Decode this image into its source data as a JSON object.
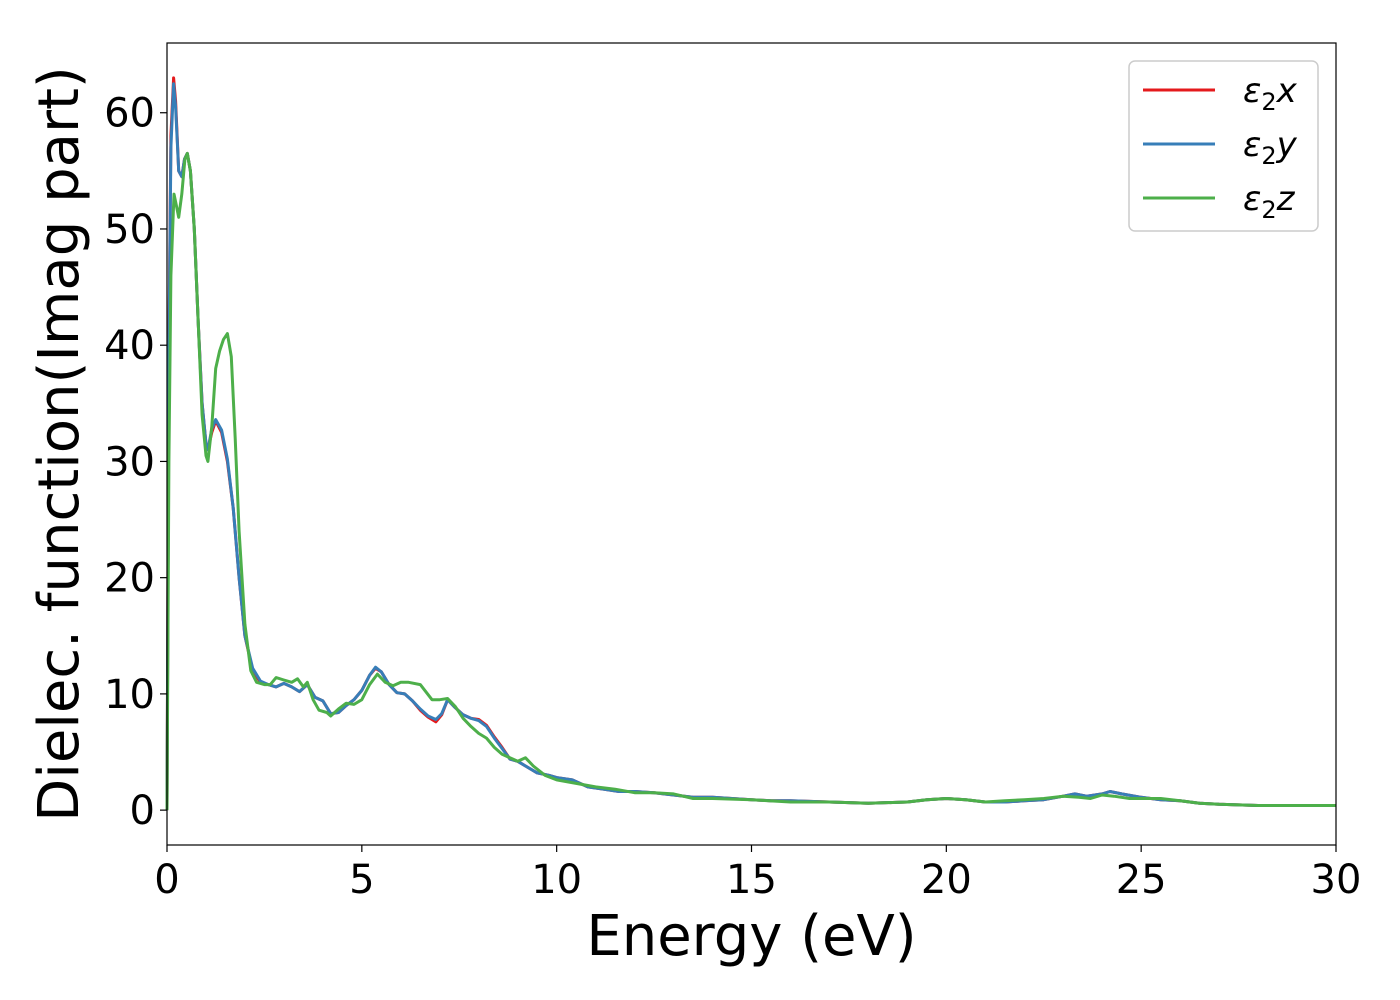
{
  "chart_data": {
    "type": "line",
    "title": "",
    "xlabel": "Energy (eV)",
    "ylabel": "Dielec. function(Imag part)",
    "xlim": [
      0,
      30
    ],
    "ylim": [
      -3,
      66
    ],
    "x_ticks": [
      0,
      5,
      10,
      15,
      20,
      25,
      30
    ],
    "y_ticks": [
      0,
      10,
      20,
      30,
      40,
      50,
      60
    ],
    "grid": false,
    "legend_position": "top-right",
    "series": [
      {
        "name": "x",
        "legend_base": "ε",
        "legend_sub": "2",
        "legend_suffix": "x",
        "color": "#e41a1c",
        "points": [
          [
            0,
            0
          ],
          [
            0.05,
            40
          ],
          [
            0.1,
            58
          ],
          [
            0.17,
            63
          ],
          [
            0.22,
            61
          ],
          [
            0.3,
            55
          ],
          [
            0.38,
            54.5
          ],
          [
            0.45,
            56
          ],
          [
            0.52,
            56.5
          ],
          [
            0.6,
            55
          ],
          [
            0.7,
            50
          ],
          [
            0.8,
            42
          ],
          [
            0.9,
            35
          ],
          [
            1.0,
            31.5
          ],
          [
            1.05,
            31
          ],
          [
            1.15,
            32.5
          ],
          [
            1.25,
            33.5
          ],
          [
            1.4,
            32.5
          ],
          [
            1.55,
            30
          ],
          [
            1.7,
            26
          ],
          [
            1.85,
            20
          ],
          [
            2.0,
            15
          ],
          [
            2.2,
            12
          ],
          [
            2.4,
            11
          ],
          [
            2.6,
            10.8
          ],
          [
            2.8,
            10.6
          ],
          [
            3.0,
            10.9
          ],
          [
            3.2,
            10.6
          ],
          [
            3.4,
            10.2
          ],
          [
            3.6,
            10.8
          ],
          [
            3.8,
            9.7
          ],
          [
            4.0,
            9.4
          ],
          [
            4.2,
            8.3
          ],
          [
            4.4,
            8.4
          ],
          [
            4.6,
            9.0
          ],
          [
            4.8,
            9.5
          ],
          [
            5.0,
            10.3
          ],
          [
            5.2,
            11.6
          ],
          [
            5.35,
            12.2
          ],
          [
            5.5,
            11.9
          ],
          [
            5.7,
            10.8
          ],
          [
            5.9,
            10.1
          ],
          [
            6.1,
            10.0
          ],
          [
            6.3,
            9.4
          ],
          [
            6.5,
            8.6
          ],
          [
            6.7,
            8.0
          ],
          [
            6.9,
            7.6
          ],
          [
            7.05,
            8.2
          ],
          [
            7.2,
            9.5
          ],
          [
            7.4,
            8.8
          ],
          [
            7.6,
            8.2
          ],
          [
            7.8,
            7.9
          ],
          [
            8.0,
            7.8
          ],
          [
            8.2,
            7.3
          ],
          [
            8.4,
            6.3
          ],
          [
            8.6,
            5.4
          ],
          [
            8.8,
            4.4
          ],
          [
            9.0,
            4.2
          ],
          [
            9.2,
            3.8
          ],
          [
            9.5,
            3.2
          ],
          [
            9.8,
            3.0
          ],
          [
            10.0,
            2.8
          ],
          [
            10.4,
            2.6
          ],
          [
            10.8,
            2.0
          ],
          [
            11.2,
            1.8
          ],
          [
            11.6,
            1.6
          ],
          [
            12.0,
            1.6
          ],
          [
            12.5,
            1.5
          ],
          [
            13.0,
            1.3
          ],
          [
            13.5,
            1.1
          ],
          [
            14.0,
            1.1
          ],
          [
            14.5,
            1.0
          ],
          [
            15.0,
            0.9
          ],
          [
            15.5,
            0.8
          ],
          [
            16.0,
            0.8
          ],
          [
            17.0,
            0.7
          ],
          [
            18.0,
            0.6
          ],
          [
            19.0,
            0.7
          ],
          [
            19.5,
            0.9
          ],
          [
            20.0,
            1.0
          ],
          [
            20.5,
            0.9
          ],
          [
            21.0,
            0.7
          ],
          [
            21.5,
            0.7
          ],
          [
            22.0,
            0.8
          ],
          [
            22.5,
            0.9
          ],
          [
            23.0,
            1.2
          ],
          [
            23.3,
            1.4
          ],
          [
            23.6,
            1.2
          ],
          [
            24.0,
            1.4
          ],
          [
            24.2,
            1.6
          ],
          [
            24.5,
            1.4
          ],
          [
            25.0,
            1.1
          ],
          [
            25.5,
            0.9
          ],
          [
            26.0,
            0.8
          ],
          [
            26.5,
            0.6
          ],
          [
            27.0,
            0.5
          ],
          [
            28.0,
            0.4
          ],
          [
            29.0,
            0.4
          ],
          [
            30.0,
            0.4
          ]
        ]
      },
      {
        "name": "y",
        "legend_base": "ε",
        "legend_sub": "2",
        "legend_suffix": "y",
        "color": "#377eb8",
        "points": [
          [
            0,
            0
          ],
          [
            0.05,
            39
          ],
          [
            0.1,
            57
          ],
          [
            0.17,
            62.5
          ],
          [
            0.22,
            60.5
          ],
          [
            0.3,
            55
          ],
          [
            0.38,
            54.5
          ],
          [
            0.45,
            56
          ],
          [
            0.52,
            56.5
          ],
          [
            0.6,
            55
          ],
          [
            0.7,
            50
          ],
          [
            0.8,
            42
          ],
          [
            0.9,
            35
          ],
          [
            1.0,
            31.5
          ],
          [
            1.05,
            31
          ],
          [
            1.15,
            32.8
          ],
          [
            1.25,
            33.6
          ],
          [
            1.4,
            32.7
          ],
          [
            1.55,
            30.2
          ],
          [
            1.7,
            26
          ],
          [
            1.85,
            20
          ],
          [
            2.0,
            15
          ],
          [
            2.2,
            12.2
          ],
          [
            2.4,
            11.1
          ],
          [
            2.6,
            10.8
          ],
          [
            2.8,
            10.6
          ],
          [
            3.0,
            10.9
          ],
          [
            3.2,
            10.6
          ],
          [
            3.4,
            10.2
          ],
          [
            3.6,
            10.8
          ],
          [
            3.8,
            9.7
          ],
          [
            4.0,
            9.4
          ],
          [
            4.2,
            8.3
          ],
          [
            4.4,
            8.4
          ],
          [
            4.6,
            9.0
          ],
          [
            4.8,
            9.5
          ],
          [
            5.0,
            10.3
          ],
          [
            5.2,
            11.6
          ],
          [
            5.35,
            12.3
          ],
          [
            5.5,
            11.9
          ],
          [
            5.7,
            10.8
          ],
          [
            5.9,
            10.1
          ],
          [
            6.1,
            10.0
          ],
          [
            6.3,
            9.4
          ],
          [
            6.5,
            8.7
          ],
          [
            6.7,
            8.1
          ],
          [
            6.9,
            7.8
          ],
          [
            7.05,
            8.3
          ],
          [
            7.2,
            9.5
          ],
          [
            7.4,
            8.8
          ],
          [
            7.6,
            8.2
          ],
          [
            7.8,
            7.9
          ],
          [
            8.0,
            7.7
          ],
          [
            8.2,
            7.2
          ],
          [
            8.4,
            6.2
          ],
          [
            8.6,
            5.3
          ],
          [
            8.8,
            4.4
          ],
          [
            9.0,
            4.2
          ],
          [
            9.2,
            3.8
          ],
          [
            9.5,
            3.2
          ],
          [
            9.8,
            3.0
          ],
          [
            10.0,
            2.8
          ],
          [
            10.4,
            2.6
          ],
          [
            10.8,
            2.0
          ],
          [
            11.2,
            1.8
          ],
          [
            11.6,
            1.6
          ],
          [
            12.0,
            1.6
          ],
          [
            12.5,
            1.5
          ],
          [
            13.0,
            1.3
          ],
          [
            13.5,
            1.1
          ],
          [
            14.0,
            1.1
          ],
          [
            14.5,
            1.0
          ],
          [
            15.0,
            0.9
          ],
          [
            15.5,
            0.8
          ],
          [
            16.0,
            0.8
          ],
          [
            17.0,
            0.7
          ],
          [
            18.0,
            0.6
          ],
          [
            19.0,
            0.7
          ],
          [
            19.5,
            0.9
          ],
          [
            20.0,
            1.0
          ],
          [
            20.5,
            0.9
          ],
          [
            21.0,
            0.7
          ],
          [
            21.5,
            0.7
          ],
          [
            22.0,
            0.8
          ],
          [
            22.5,
            0.9
          ],
          [
            23.0,
            1.2
          ],
          [
            23.3,
            1.4
          ],
          [
            23.6,
            1.2
          ],
          [
            24.0,
            1.4
          ],
          [
            24.2,
            1.6
          ],
          [
            24.5,
            1.4
          ],
          [
            25.0,
            1.1
          ],
          [
            25.5,
            0.9
          ],
          [
            26.0,
            0.8
          ],
          [
            26.5,
            0.6
          ],
          [
            27.0,
            0.5
          ],
          [
            28.0,
            0.4
          ],
          [
            29.0,
            0.4
          ],
          [
            30.0,
            0.4
          ]
        ]
      },
      {
        "name": "z",
        "legend_base": "ε",
        "legend_sub": "2",
        "legend_suffix": "z",
        "color": "#4daf4a",
        "points": [
          [
            0,
            0
          ],
          [
            0.05,
            30
          ],
          [
            0.1,
            46
          ],
          [
            0.18,
            53
          ],
          [
            0.24,
            52
          ],
          [
            0.3,
            51
          ],
          [
            0.38,
            53
          ],
          [
            0.46,
            56
          ],
          [
            0.52,
            56.5
          ],
          [
            0.6,
            55
          ],
          [
            0.7,
            50
          ],
          [
            0.8,
            42
          ],
          [
            0.9,
            34
          ],
          [
            1.0,
            30.5
          ],
          [
            1.05,
            30
          ],
          [
            1.15,
            33
          ],
          [
            1.25,
            38
          ],
          [
            1.35,
            39.5
          ],
          [
            1.45,
            40.5
          ],
          [
            1.55,
            41
          ],
          [
            1.65,
            39
          ],
          [
            1.75,
            32
          ],
          [
            1.85,
            24
          ],
          [
            2.0,
            16
          ],
          [
            2.15,
            12
          ],
          [
            2.3,
            11
          ],
          [
            2.5,
            10.8
          ],
          [
            2.65,
            10.8
          ],
          [
            2.8,
            11.4
          ],
          [
            3.0,
            11.2
          ],
          [
            3.2,
            11.0
          ],
          [
            3.35,
            11.3
          ],
          [
            3.5,
            10.6
          ],
          [
            3.6,
            11.0
          ],
          [
            3.75,
            9.5
          ],
          [
            3.9,
            8.6
          ],
          [
            4.1,
            8.4
          ],
          [
            4.2,
            8.1
          ],
          [
            4.4,
            8.7
          ],
          [
            4.6,
            9.2
          ],
          [
            4.8,
            9.1
          ],
          [
            5.0,
            9.5
          ],
          [
            5.2,
            10.8
          ],
          [
            5.4,
            11.7
          ],
          [
            5.6,
            11.0
          ],
          [
            5.8,
            10.7
          ],
          [
            6.0,
            11.0
          ],
          [
            6.2,
            11.0
          ],
          [
            6.5,
            10.8
          ],
          [
            6.8,
            9.5
          ],
          [
            7.0,
            9.5
          ],
          [
            7.2,
            9.6
          ],
          [
            7.4,
            8.9
          ],
          [
            7.6,
            7.9
          ],
          [
            7.8,
            7.2
          ],
          [
            8.0,
            6.6
          ],
          [
            8.2,
            6.2
          ],
          [
            8.4,
            5.4
          ],
          [
            8.6,
            4.8
          ],
          [
            8.8,
            4.5
          ],
          [
            9.0,
            4.2
          ],
          [
            9.2,
            4.5
          ],
          [
            9.4,
            3.8
          ],
          [
            9.7,
            3.0
          ],
          [
            10.0,
            2.6
          ],
          [
            10.5,
            2.3
          ],
          [
            11.0,
            2.0
          ],
          [
            11.5,
            1.8
          ],
          [
            12.0,
            1.5
          ],
          [
            12.5,
            1.5
          ],
          [
            13.0,
            1.4
          ],
          [
            13.5,
            1.0
          ],
          [
            14.0,
            1.0
          ],
          [
            15.0,
            0.9
          ],
          [
            16.0,
            0.7
          ],
          [
            17.0,
            0.7
          ],
          [
            18.0,
            0.6
          ],
          [
            19.0,
            0.7
          ],
          [
            19.5,
            0.9
          ],
          [
            20.0,
            1.0
          ],
          [
            20.5,
            0.9
          ],
          [
            21.0,
            0.7
          ],
          [
            21.5,
            0.8
          ],
          [
            22.0,
            0.9
          ],
          [
            22.5,
            1.0
          ],
          [
            23.0,
            1.2
          ],
          [
            23.4,
            1.1
          ],
          [
            23.7,
            1.0
          ],
          [
            24.0,
            1.3
          ],
          [
            24.3,
            1.2
          ],
          [
            24.7,
            1.0
          ],
          [
            25.0,
            1.0
          ],
          [
            25.5,
            1.0
          ],
          [
            26.0,
            0.8
          ],
          [
            26.5,
            0.6
          ],
          [
            27.0,
            0.5
          ],
          [
            28.0,
            0.4
          ],
          [
            29.0,
            0.4
          ],
          [
            30.0,
            0.4
          ]
        ]
      }
    ]
  }
}
